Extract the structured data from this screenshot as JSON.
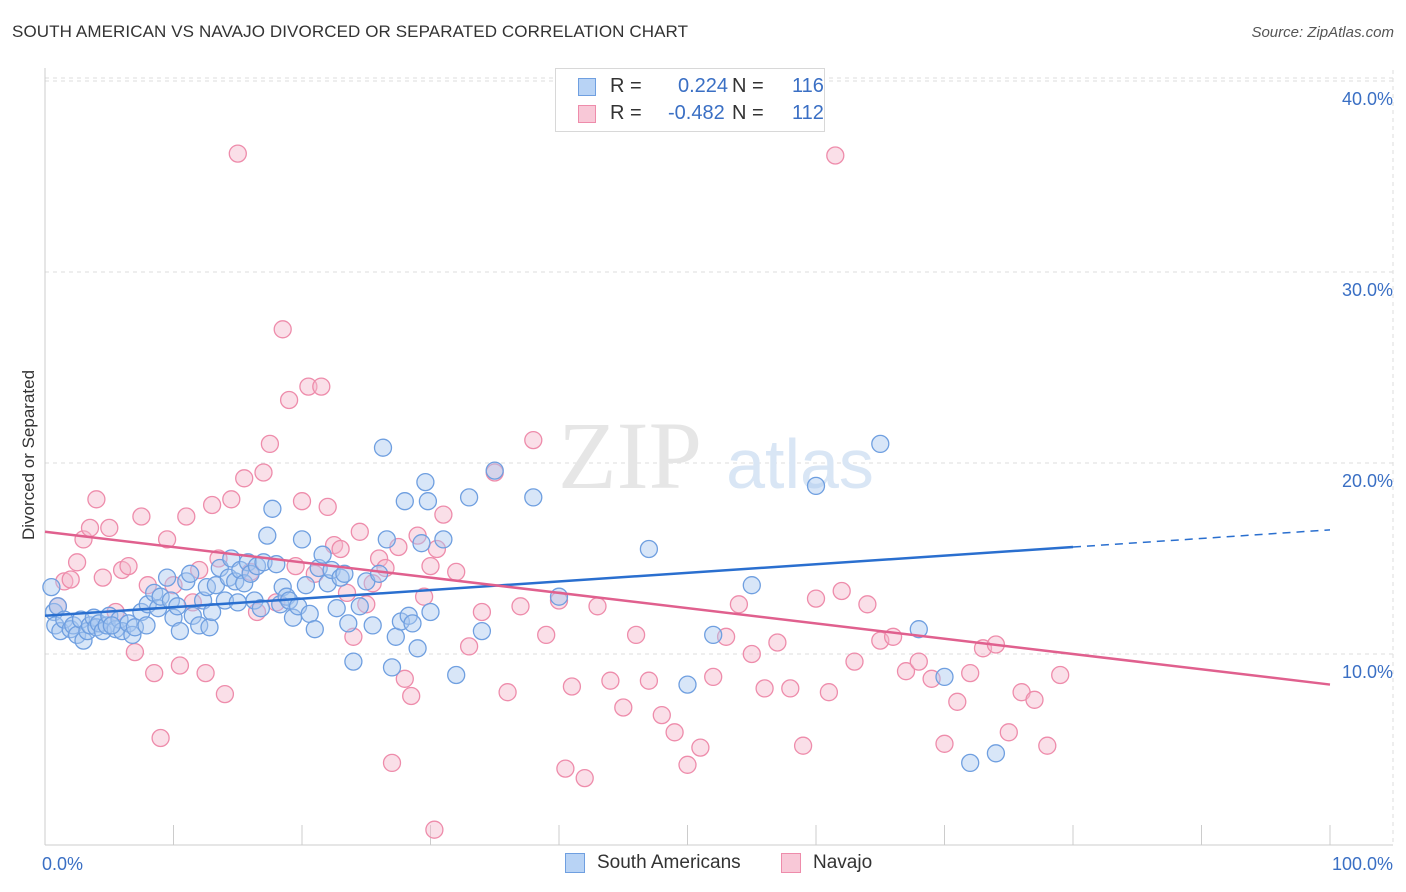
{
  "header": {
    "title": "SOUTH AMERICAN VS NAVAJO DIVORCED OR SEPARATED CORRELATION CHART",
    "source": "Source: ZipAtlas.com"
  },
  "legend": {
    "rows": [
      {
        "r_label": "R =",
        "r_value": "0.224",
        "n_label": "N =",
        "n_value": "116"
      },
      {
        "r_label": "R =",
        "r_value": "-0.482",
        "n_label": "N =",
        "n_value": "112"
      }
    ],
    "bottom": [
      "South Americans",
      "Navajo"
    ]
  },
  "watermark": {
    "zip": "ZIP",
    "atlas": "atlas"
  },
  "colors": {
    "blue_fill": "#a9c8f0",
    "blue_stroke": "#6f9fe0",
    "blue_line": "#2a6fcf",
    "pink_fill": "#f5b8cb",
    "pink_stroke": "#ee8cab",
    "pink_line": "#e0608e",
    "tick_label": "#3a6fc4",
    "grid": "#dddddd"
  },
  "chart_data": {
    "type": "scatter",
    "title": "SOUTH AMERICAN VS NAVAJO DIVORCED OR SEPARATED CORRELATION CHART",
    "xlabel": "",
    "ylabel": "Divorced or Separated",
    "xlim": [
      0,
      100
    ],
    "ylim": [
      0,
      42
    ],
    "x_tick_labels": [
      {
        "value": 0,
        "label": "0.0%"
      },
      {
        "value": 100,
        "label": "100.0%"
      }
    ],
    "y_tick_labels": [
      {
        "value": 10,
        "label": "10.0%"
      },
      {
        "value": 20,
        "label": "20.0%"
      },
      {
        "value": 30,
        "label": "30.0%"
      },
      {
        "value": 40,
        "label": "40.0%"
      }
    ],
    "grid": true,
    "legend_position": "top-center",
    "series": [
      {
        "name": "South Americans",
        "r": 0.224,
        "n": 116,
        "trend": {
          "x0": 0,
          "y0": 12.0,
          "x1": 80,
          "y1": 15.6,
          "dashed_to_x": 100,
          "dashed_to_y": 16.5
        },
        "points": [
          [
            0.5,
            13.5
          ],
          [
            0.7,
            12.2
          ],
          [
            0.8,
            11.5
          ],
          [
            1.0,
            12.5
          ],
          [
            1.2,
            11.2
          ],
          [
            1.5,
            11.8
          ],
          [
            2.0,
            11.3
          ],
          [
            2.2,
            11.5
          ],
          [
            2.5,
            11.0
          ],
          [
            2.8,
            11.8
          ],
          [
            3.0,
            10.7
          ],
          [
            3.3,
            11.2
          ],
          [
            3.5,
            11.5
          ],
          [
            3.8,
            11.9
          ],
          [
            4.0,
            11.4
          ],
          [
            4.2,
            11.6
          ],
          [
            4.5,
            11.2
          ],
          [
            4.8,
            11.5
          ],
          [
            5.0,
            12.0
          ],
          [
            5.5,
            11.3
          ],
          [
            5.8,
            11.8
          ],
          [
            6.0,
            11.2
          ],
          [
            6.5,
            11.6
          ],
          [
            6.8,
            11.0
          ],
          [
            7.0,
            11.4
          ],
          [
            7.5,
            12.2
          ],
          [
            7.9,
            11.5
          ],
          [
            8.0,
            12.6
          ],
          [
            8.5,
            13.2
          ],
          [
            8.8,
            12.4
          ],
          [
            9.0,
            13.0
          ],
          [
            9.5,
            14.0
          ],
          [
            9.8,
            12.8
          ],
          [
            10.0,
            11.9
          ],
          [
            10.3,
            12.5
          ],
          [
            10.5,
            11.2
          ],
          [
            11.0,
            13.8
          ],
          [
            11.3,
            14.2
          ],
          [
            11.5,
            12.0
          ],
          [
            12.0,
            11.5
          ],
          [
            12.3,
            12.8
          ],
          [
            12.6,
            13.5
          ],
          [
            12.8,
            11.4
          ],
          [
            13.0,
            12.2
          ],
          [
            13.3,
            13.6
          ],
          [
            13.6,
            14.5
          ],
          [
            14.0,
            12.8
          ],
          [
            14.3,
            14.0
          ],
          [
            14.5,
            15.0
          ],
          [
            14.8,
            13.8
          ],
          [
            15.2,
            14.4
          ],
          [
            15.5,
            13.7
          ],
          [
            15.8,
            14.8
          ],
          [
            16.0,
            14.2
          ],
          [
            16.3,
            12.8
          ],
          [
            16.5,
            14.6
          ],
          [
            16.8,
            12.4
          ],
          [
            17.0,
            14.8
          ],
          [
            17.3,
            16.2
          ],
          [
            17.7,
            17.6
          ],
          [
            18.0,
            14.7
          ],
          [
            18.3,
            12.6
          ],
          [
            18.5,
            13.5
          ],
          [
            18.8,
            13.0
          ],
          [
            19.0,
            12.8
          ],
          [
            19.3,
            11.9
          ],
          [
            19.7,
            12.5
          ],
          [
            20.0,
            16.0
          ],
          [
            20.3,
            13.6
          ],
          [
            20.6,
            12.1
          ],
          [
            21.0,
            11.3
          ],
          [
            21.3,
            14.5
          ],
          [
            21.6,
            15.2
          ],
          [
            22.0,
            13.7
          ],
          [
            22.3,
            14.4
          ],
          [
            22.7,
            12.4
          ],
          [
            23.0,
            14.0
          ],
          [
            23.3,
            14.2
          ],
          [
            23.6,
            11.6
          ],
          [
            24.0,
            9.6
          ],
          [
            24.5,
            12.5
          ],
          [
            25.0,
            13.8
          ],
          [
            25.5,
            11.5
          ],
          [
            26.0,
            14.2
          ],
          [
            26.3,
            20.8
          ],
          [
            26.6,
            16.0
          ],
          [
            27.0,
            9.3
          ],
          [
            27.3,
            10.9
          ],
          [
            27.7,
            11.7
          ],
          [
            28.0,
            18.0
          ],
          [
            28.3,
            12.0
          ],
          [
            28.6,
            11.6
          ],
          [
            29.0,
            10.3
          ],
          [
            29.3,
            15.8
          ],
          [
            29.6,
            19.0
          ],
          [
            29.8,
            18.0
          ],
          [
            30.0,
            12.2
          ],
          [
            31.0,
            16.0
          ],
          [
            32.0,
            8.9
          ],
          [
            33.0,
            18.2
          ],
          [
            34.0,
            11.2
          ],
          [
            35.0,
            19.6
          ],
          [
            38.0,
            18.2
          ],
          [
            40.0,
            13.0
          ],
          [
            47.0,
            15.5
          ],
          [
            50.0,
            8.4
          ],
          [
            52.0,
            11.0
          ],
          [
            55.0,
            13.6
          ],
          [
            60.0,
            18.8
          ],
          [
            65.0,
            21.0
          ],
          [
            68.0,
            11.3
          ],
          [
            70.0,
            8.8
          ],
          [
            72.0,
            4.3
          ],
          [
            74.0,
            4.8
          ],
          [
            15.0,
            12.7
          ],
          [
            5.2,
            11.5
          ]
        ]
      },
      {
        "name": "Navajo",
        "r": -0.482,
        "n": 112,
        "trend": {
          "x0": 0,
          "y0": 16.4,
          "x1": 100,
          "y1": 8.4
        },
        "points": [
          [
            1.0,
            12.5
          ],
          [
            1.5,
            13.8
          ],
          [
            2.0,
            13.9
          ],
          [
            2.5,
            14.8
          ],
          [
            3.0,
            16.0
          ],
          [
            3.5,
            16.6
          ],
          [
            4.0,
            18.1
          ],
          [
            4.5,
            14.0
          ],
          [
            5.0,
            16.6
          ],
          [
            5.5,
            12.2
          ],
          [
            6.0,
            14.4
          ],
          [
            6.5,
            14.6
          ],
          [
            7.0,
            10.1
          ],
          [
            7.5,
            17.2
          ],
          [
            8.0,
            13.6
          ],
          [
            8.5,
            9.0
          ],
          [
            9.0,
            5.6
          ],
          [
            9.5,
            16.0
          ],
          [
            10.0,
            13.6
          ],
          [
            10.5,
            9.4
          ],
          [
            11.0,
            17.2
          ],
          [
            11.5,
            12.7
          ],
          [
            12.0,
            14.4
          ],
          [
            12.5,
            9.0
          ],
          [
            13.0,
            17.8
          ],
          [
            13.5,
            15.0
          ],
          [
            14.0,
            7.9
          ],
          [
            14.5,
            18.1
          ],
          [
            15.0,
            36.2
          ],
          [
            15.5,
            19.2
          ],
          [
            16.0,
            14.3
          ],
          [
            16.5,
            12.2
          ],
          [
            17.0,
            19.5
          ],
          [
            17.5,
            21.0
          ],
          [
            18.0,
            12.7
          ],
          [
            18.5,
            27.0
          ],
          [
            19.0,
            23.3
          ],
          [
            19.5,
            14.6
          ],
          [
            20.0,
            18.0
          ],
          [
            20.5,
            24.0
          ],
          [
            21.0,
            14.2
          ],
          [
            21.5,
            24.0
          ],
          [
            22.0,
            17.7
          ],
          [
            22.5,
            15.7
          ],
          [
            23.0,
            15.5
          ],
          [
            23.5,
            13.2
          ],
          [
            24.0,
            10.9
          ],
          [
            24.5,
            16.4
          ],
          [
            25.0,
            12.6
          ],
          [
            25.5,
            13.7
          ],
          [
            26.0,
            15.0
          ],
          [
            26.5,
            14.5
          ],
          [
            27.0,
            4.3
          ],
          [
            27.5,
            15.6
          ],
          [
            28.0,
            8.7
          ],
          [
            28.5,
            7.8
          ],
          [
            29.0,
            16.2
          ],
          [
            29.5,
            13.0
          ],
          [
            30.0,
            14.6
          ],
          [
            30.5,
            15.5
          ],
          [
            31.0,
            17.3
          ],
          [
            32.0,
            14.3
          ],
          [
            33.0,
            10.4
          ],
          [
            34.0,
            12.2
          ],
          [
            35.0,
            19.5
          ],
          [
            36.0,
            8.0
          ],
          [
            37.0,
            12.5
          ],
          [
            38.0,
            21.2
          ],
          [
            39.0,
            11.0
          ],
          [
            40.0,
            12.8
          ],
          [
            40.5,
            4.0
          ],
          [
            41.0,
            8.3
          ],
          [
            42.0,
            3.5
          ],
          [
            43.0,
            12.5
          ],
          [
            44.0,
            8.6
          ],
          [
            45.0,
            7.2
          ],
          [
            46.0,
            11.0
          ],
          [
            47.0,
            8.6
          ],
          [
            48.0,
            6.8
          ],
          [
            49.0,
            5.9
          ],
          [
            50.0,
            4.2
          ],
          [
            51.0,
            5.1
          ],
          [
            52.0,
            8.8
          ],
          [
            53.0,
            10.9
          ],
          [
            54.0,
            12.6
          ],
          [
            55.0,
            10.0
          ],
          [
            56.0,
            8.2
          ],
          [
            57.0,
            10.6
          ],
          [
            58.0,
            8.2
          ],
          [
            59.0,
            5.2
          ],
          [
            60.0,
            12.9
          ],
          [
            61.0,
            8.0
          ],
          [
            62.0,
            13.3
          ],
          [
            63.0,
            9.6
          ],
          [
            64.0,
            12.6
          ],
          [
            65.0,
            10.7
          ],
          [
            66.0,
            10.9
          ],
          [
            67.0,
            9.1
          ],
          [
            68.0,
            9.6
          ],
          [
            69.0,
            8.7
          ],
          [
            70.0,
            5.3
          ],
          [
            71.0,
            7.5
          ],
          [
            72.0,
            9.0
          ],
          [
            73.0,
            10.3
          ],
          [
            74.0,
            10.5
          ],
          [
            75.0,
            5.9
          ],
          [
            76.0,
            8.0
          ],
          [
            77.0,
            7.6
          ],
          [
            78.0,
            5.2
          ],
          [
            79.0,
            8.9
          ],
          [
            61.5,
            36.1
          ],
          [
            30.3,
            0.8
          ]
        ]
      }
    ]
  }
}
